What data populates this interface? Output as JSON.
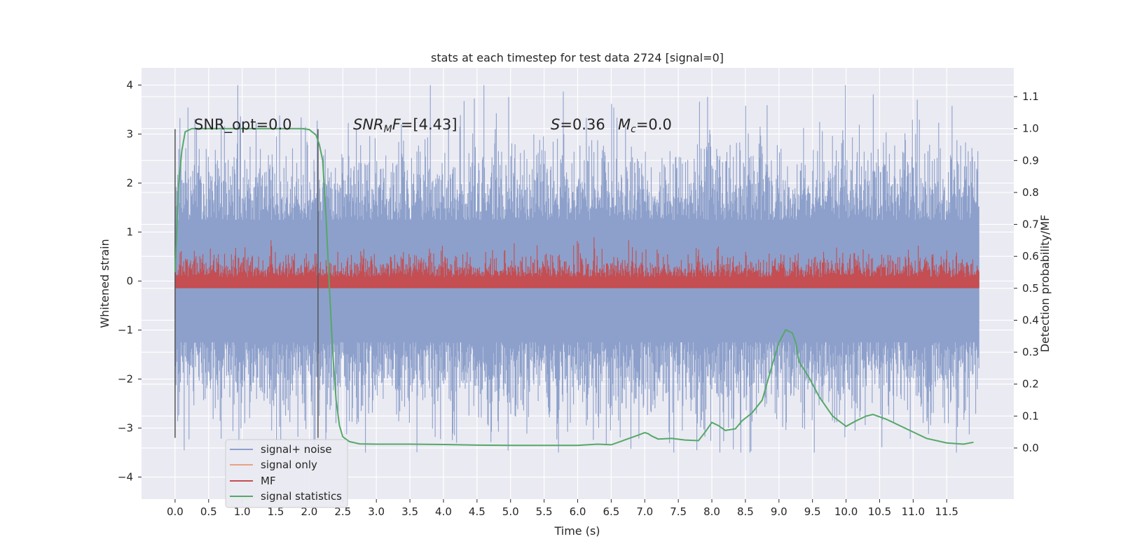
{
  "chart_data": {
    "type": "line",
    "title": "stats at each timestep for test data 2724 [signal=0]",
    "xlabel": "Time (s)",
    "ylabel": "Whitened strain",
    "y2label": "Detection probability/MF",
    "xlim": [
      -0.5,
      12.5
    ],
    "ylim": [
      -4.45,
      4.35
    ],
    "y2lim": [
      -0.16,
      1.19
    ],
    "grid": true,
    "legend_position": "lower-left",
    "x_ticks": [
      "0.0",
      "0.5",
      "1.0",
      "1.5",
      "2.0",
      "2.5",
      "3.0",
      "3.5",
      "4.0",
      "4.5",
      "5.0",
      "5.5",
      "6.0",
      "6.5",
      "7.0",
      "7.5",
      "8.0",
      "8.5",
      "9.0",
      "9.5",
      "10.0",
      "10.5",
      "11.0",
      "11.5"
    ],
    "y_ticks": [
      "4",
      "3",
      "2",
      "1",
      "0",
      "−1",
      "−2",
      "−3",
      "−4"
    ],
    "y2_ticks": [
      "1.1",
      "1.0",
      "0.9",
      "0.8",
      "0.7",
      "0.6",
      "0.5",
      "0.4",
      "0.3",
      "0.2",
      "0.1",
      "0.0"
    ],
    "annotations": {
      "snr_opt": "SNR_opt=0.0",
      "snr_mf_label": "SNR",
      "snr_mf_sub": "M",
      "snr_mf_tail": "F",
      "snr_mf_value": "=[4.43]",
      "s_label": "S",
      "s_value": "=0.36",
      "mc_label": "M",
      "mc_sub": "c",
      "mc_value": "=0.0"
    },
    "vertical_markers": [
      0.0,
      2.13
    ],
    "series": [
      {
        "name": "signal+ noise",
        "color": "#8da0cb",
        "kind": "noise",
        "description_range": [
          -3.5,
          4.0
        ],
        "x_range": [
          0.0,
          11.98
        ]
      },
      {
        "name": "signal only",
        "color": "#e8a383",
        "kind": "flat",
        "values": []
      },
      {
        "name": "MF",
        "color": "#c44e52",
        "kind": "mf",
        "axis": "y2",
        "x_range": [
          0.0,
          11.98
        ],
        "value_range": [
          0.5,
          0.66
        ]
      },
      {
        "name": "signal statistics",
        "color": "#55a868",
        "axis": "y2",
        "x": [
          0.0,
          0.05,
          0.1,
          0.15,
          0.25,
          0.5,
          1.0,
          1.5,
          1.9,
          2.0,
          2.1,
          2.15,
          2.2,
          2.25,
          2.3,
          2.35,
          2.4,
          2.45,
          2.5,
          2.6,
          2.75,
          3.0,
          3.5,
          4.0,
          4.5,
          5.0,
          5.5,
          6.0,
          6.3,
          6.5,
          6.7,
          6.9,
          7.0,
          7.05,
          7.1,
          7.2,
          7.4,
          7.6,
          7.8,
          7.9,
          8.0,
          8.1,
          8.2,
          8.35,
          8.45,
          8.6,
          8.75,
          8.9,
          9.0,
          9.1,
          9.2,
          9.25,
          9.3,
          9.45,
          9.6,
          9.8,
          10.0,
          10.15,
          10.3,
          10.4,
          10.6,
          10.9,
          11.2,
          11.5,
          11.75,
          11.9
        ],
        "values": [
          0.55,
          0.82,
          0.93,
          0.99,
          1.0,
          1.0,
          1.0,
          1.0,
          1.0,
          0.997,
          0.98,
          0.95,
          0.9,
          0.72,
          0.5,
          0.3,
          0.15,
          0.07,
          0.035,
          0.02,
          0.013,
          0.012,
          0.012,
          0.011,
          0.009,
          0.008,
          0.008,
          0.008,
          0.012,
          0.01,
          0.025,
          0.04,
          0.048,
          0.045,
          0.038,
          0.028,
          0.03,
          0.025,
          0.023,
          0.05,
          0.08,
          0.07,
          0.055,
          0.06,
          0.085,
          0.11,
          0.15,
          0.26,
          0.33,
          0.37,
          0.36,
          0.33,
          0.27,
          0.22,
          0.16,
          0.1,
          0.068,
          0.085,
          0.1,
          0.105,
          0.09,
          0.06,
          0.03,
          0.016,
          0.012,
          0.018
        ]
      }
    ]
  }
}
